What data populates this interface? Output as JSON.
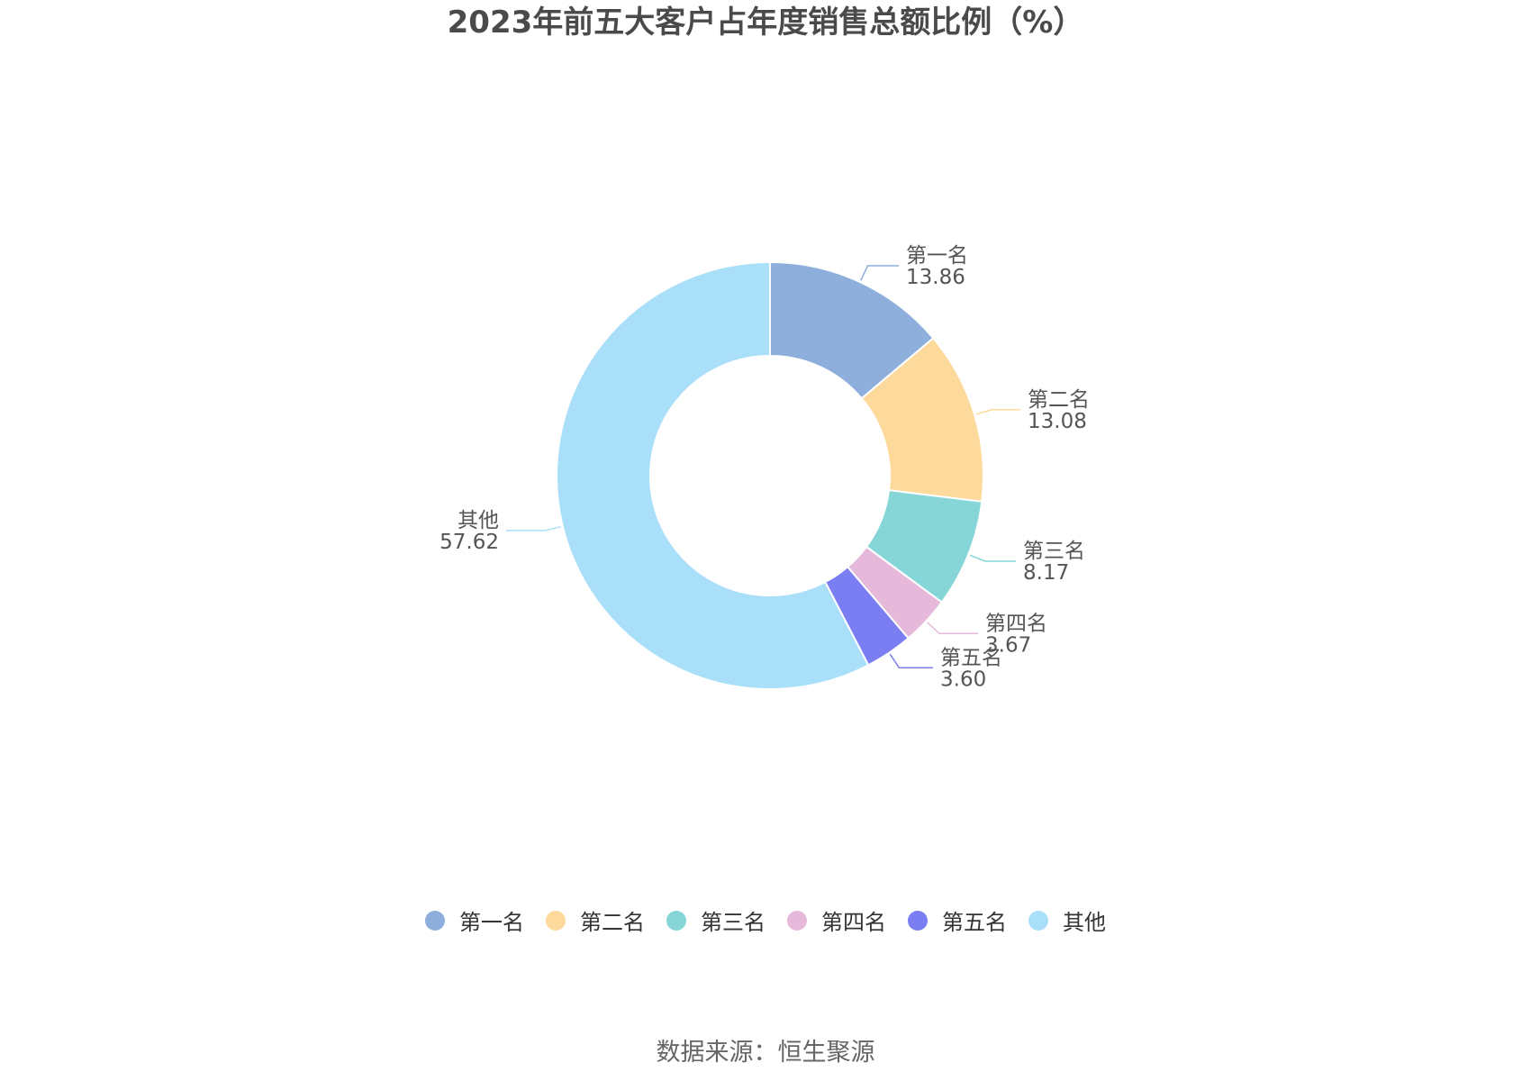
{
  "chart_data": {
    "type": "pie",
    "variant": "donut",
    "title": "2023年前五大客户占年度销售总额比例（%）",
    "categories": [
      "第一名",
      "第二名",
      "第三名",
      "第四名",
      "第五名",
      "其他"
    ],
    "values": [
      13.86,
      13.08,
      8.17,
      3.67,
      3.6,
      57.62
    ],
    "value_labels": [
      "13.86",
      "13.08",
      "8.17",
      "3.67",
      "3.60",
      "57.62"
    ],
    "colors": [
      "#8eaedb",
      "#fdd99b",
      "#86d5d7",
      "#e6b9db",
      "#7a7ef2",
      "#aadff9"
    ],
    "legend_position": "bottom"
  },
  "footer": {
    "source": "数据来源：恒生聚源"
  }
}
